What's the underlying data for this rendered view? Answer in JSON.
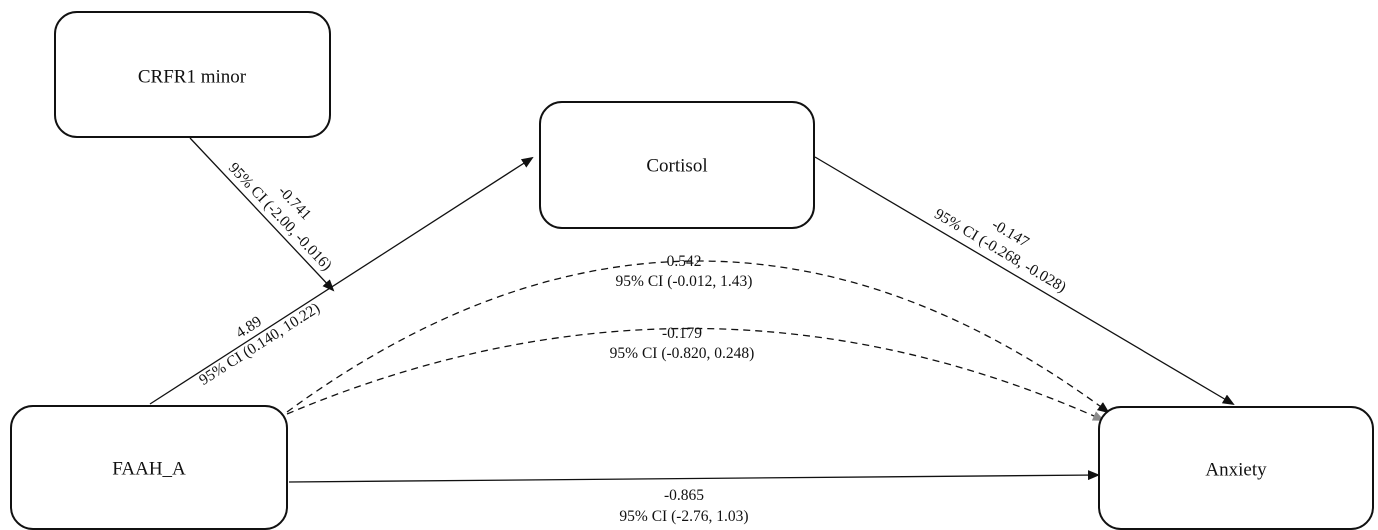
{
  "nodes": {
    "crfr1": "CRFR1 minor",
    "cortisol": "Cortisol",
    "faah": "FAAH_A",
    "anxiety": "Anxiety"
  },
  "edges": {
    "faah_cortisol": {
      "coef": "4.89",
      "ci": "95% CI (0.140, 10.22)"
    },
    "crfr1_moderation": {
      "coef": "-0.741",
      "ci": "95% CI (-2.00, -0.016)"
    },
    "cortisol_anxiety": {
      "coef": "-0.147",
      "ci": "95% CI (-0.268, -0.028)"
    },
    "indirect_black": {
      "coef": "0.542",
      "ci": "95% CI (-0.012, 1.43)"
    },
    "indirect_gray": {
      "coef": "-0.179",
      "ci": "95% CI (-0.820, 0.248)"
    },
    "direct": {
      "coef": "-0.865",
      "ci": "95% CI (-2.76, 1.03)"
    }
  },
  "colors": {
    "line": "#111111",
    "dashed_black": "#111111",
    "dashed_gray": "#8c8c8c"
  }
}
